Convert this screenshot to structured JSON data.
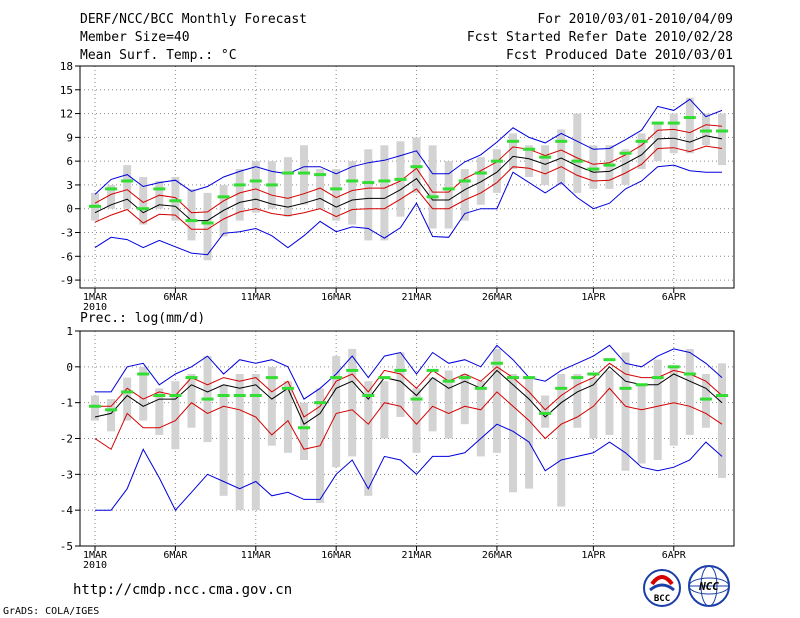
{
  "header": {
    "title": "DERF/NCC/BCC Monthly Forecast",
    "member_size": "Member Size=40",
    "variable": "Mean Surf. Temp.: °C",
    "period": "For 2010/03/01-2010/04/09",
    "start_date": "Fcst Started Refer Date 2010/02/28",
    "produced_date": "Fcst Produced Date 2010/03/01"
  },
  "footer": {
    "url": "http://cmdp.ncc.cma.gov.cn",
    "grads": "GrADS: COLA/IGES",
    "logo_bcc": "BCC",
    "logo_ncc": "NCC"
  },
  "colors": {
    "mean": "#000000",
    "spread": "#d40000",
    "range": "#0000dd",
    "obs": "#33dd33",
    "box": "#d3d3d3",
    "grid": "#888888"
  },
  "chart_data": [
    {
      "type": "line",
      "title": "Mean Surf. Temp.: °C",
      "ylabel": "°C",
      "ylim": [
        -10,
        18
      ],
      "yticks": [
        -9,
        -6,
        -3,
        0,
        3,
        6,
        9,
        12,
        15,
        18
      ],
      "x_tick_labels": [
        "1MAR",
        "6MAR",
        "11MAR",
        "16MAR",
        "21MAR",
        "26MAR",
        "1APR",
        "6APR"
      ],
      "x_tick_days": [
        1,
        6,
        11,
        16,
        21,
        26,
        32,
        37
      ],
      "x_year_label": "2010",
      "days": [
        1,
        2,
        3,
        4,
        5,
        6,
        7,
        8,
        9,
        10,
        11,
        12,
        13,
        14,
        15,
        16,
        17,
        18,
        19,
        20,
        21,
        22,
        23,
        24,
        25,
        26,
        27,
        28,
        29,
        30,
        31,
        32,
        33,
        34,
        35,
        36,
        37,
        38,
        39,
        40
      ],
      "series": [
        {
          "name": "mean",
          "values": [
            -0.5,
            0.5,
            1.2,
            -0.5,
            0.5,
            0.3,
            -1.5,
            -1.5,
            -0.2,
            0.8,
            1.2,
            0.6,
            0.2,
            0.7,
            1.3,
            0.2,
            1.1,
            1.3,
            1.3,
            2.4,
            3.8,
            1.1,
            1.1,
            2.4,
            3.4,
            4.6,
            6.6,
            6.3,
            5.6,
            6.4,
            5.4,
            4.6,
            4.7,
            5.7,
            6.8,
            8.8,
            8.9,
            8.4,
            9.2,
            8.8
          ]
        },
        {
          "name": "spread_upper",
          "values": [
            0.7,
            1.8,
            2.4,
            0.8,
            1.7,
            1.4,
            -0.5,
            -0.4,
            1.0,
            2.0,
            2.5,
            1.7,
            1.3,
            1.9,
            2.6,
            1.4,
            2.3,
            2.6,
            2.6,
            3.5,
            5.1,
            2.1,
            2.1,
            3.8,
            4.8,
            5.9,
            7.8,
            7.5,
            6.7,
            7.4,
            6.4,
            5.6,
            5.8,
            6.8,
            8.0,
            9.9,
            10.0,
            9.6,
            10.6,
            10.4
          ]
        },
        {
          "name": "spread_lower",
          "values": [
            -1.7,
            -0.8,
            -0.1,
            -1.8,
            -0.7,
            -0.8,
            -2.6,
            -2.6,
            -1.3,
            -0.4,
            0.0,
            -0.6,
            -0.9,
            -0.5,
            0.0,
            -1.0,
            -0.1,
            0.0,
            0.0,
            1.2,
            2.5,
            0.0,
            0.0,
            1.1,
            2.0,
            3.3,
            5.3,
            5.1,
            4.4,
            5.3,
            4.2,
            3.5,
            3.6,
            4.5,
            5.6,
            7.6,
            7.7,
            7.2,
            7.9,
            7.6
          ]
        },
        {
          "name": "max",
          "values": [
            1.8,
            3.7,
            4.3,
            2.8,
            3.3,
            3.6,
            2.2,
            2.8,
            4.0,
            4.7,
            5.3,
            4.7,
            4.4,
            5.3,
            5.3,
            4.4,
            5.3,
            5.8,
            6.1,
            6.7,
            7.3,
            4.4,
            4.4,
            5.9,
            6.8,
            8.4,
            10.2,
            9.0,
            8.3,
            9.5,
            8.5,
            7.5,
            7.6,
            8.7,
            9.9,
            12.9,
            12.4,
            13.8,
            11.6,
            12.4
          ]
        },
        {
          "name": "min",
          "values": [
            -4.9,
            -3.6,
            -3.9,
            -4.9,
            -4.0,
            -4.8,
            -5.6,
            -5.8,
            -3.1,
            -2.9,
            -2.5,
            -3.4,
            -4.9,
            -3.4,
            -1.6,
            -2.9,
            -2.3,
            -2.5,
            -3.7,
            -2.4,
            0.7,
            -3.5,
            -3.6,
            -0.6,
            0.0,
            0.0,
            4.6,
            3.3,
            2.0,
            3.3,
            1.4,
            0.0,
            0.7,
            2.5,
            3.5,
            5.3,
            5.5,
            4.8,
            4.6,
            4.6
          ]
        },
        {
          "name": "box_top",
          "values": [
            2.0,
            3.0,
            5.5,
            4.0,
            3.5,
            4.0,
            2.5,
            2.0,
            3.0,
            5.0,
            6.0,
            6.0,
            6.5,
            8.0,
            5.0,
            5.0,
            6.0,
            7.5,
            8.0,
            8.5,
            9.0,
            8.0,
            6.0,
            5.0,
            6.5,
            7.5,
            9.5,
            8.0,
            8.0,
            10.0,
            12.0,
            8.0,
            8.0,
            7.5,
            9.5,
            11.0,
            12.0,
            14.0,
            12.0,
            12.0
          ]
        },
        {
          "name": "box_bottom",
          "values": [
            -1.5,
            0.0,
            0.0,
            -2.0,
            0.0,
            -1.5,
            -4.0,
            -6.5,
            -3.5,
            -1.5,
            -0.5,
            0.0,
            -1.0,
            0.5,
            0.0,
            -1.5,
            -2.0,
            -4.0,
            -4.0,
            -1.0,
            2.0,
            -2.5,
            -2.5,
            -1.5,
            0.5,
            2.0,
            5.0,
            4.0,
            3.0,
            3.0,
            2.0,
            2.5,
            2.5,
            3.0,
            5.0,
            6.0,
            7.0,
            7.0,
            8.0,
            5.5
          ]
        },
        {
          "name": "obs",
          "values": [
            0.3,
            2.5,
            3.5,
            0.0,
            2.5,
            1.0,
            -1.5,
            -1.8,
            1.5,
            3.0,
            3.5,
            3.0,
            4.5,
            4.5,
            4.3,
            2.5,
            3.5,
            3.3,
            3.5,
            3.7,
            5.3,
            1.5,
            2.5,
            3.5,
            4.5,
            6.0,
            8.5,
            7.5,
            6.5,
            8.5,
            6.0,
            5.0,
            5.5,
            7.0,
            8.5,
            10.8,
            10.8,
            11.5,
            9.8,
            9.8
          ]
        }
      ]
    },
    {
      "type": "line",
      "title": "Prec.: log(mm/d)",
      "ylabel": "log(mm/d)",
      "ylim": [
        -5,
        1
      ],
      "yticks": [
        -5,
        -4,
        -3,
        -2,
        -1,
        0,
        1
      ],
      "x_tick_labels": [
        "1MAR",
        "6MAR",
        "11MAR",
        "16MAR",
        "21MAR",
        "26MAR",
        "1APR",
        "6APR"
      ],
      "x_tick_days": [
        1,
        6,
        11,
        16,
        21,
        26,
        32,
        37
      ],
      "x_year_label": "2010",
      "days": [
        1,
        2,
        3,
        4,
        5,
        6,
        7,
        8,
        9,
        10,
        11,
        12,
        13,
        14,
        15,
        16,
        17,
        18,
        19,
        20,
        21,
        22,
        23,
        24,
        25,
        26,
        27,
        28,
        29,
        30,
        31,
        32,
        33,
        34,
        35,
        36,
        37,
        38,
        39,
        40
      ],
      "series": [
        {
          "name": "mean",
          "values": [
            -1.4,
            -1.3,
            -0.8,
            -1.1,
            -0.9,
            -0.9,
            -0.5,
            -0.7,
            -0.5,
            -0.6,
            -0.5,
            -0.9,
            -0.6,
            -1.6,
            -1.3,
            -0.6,
            -0.4,
            -0.9,
            -0.3,
            -0.4,
            -0.8,
            -0.3,
            -0.6,
            -0.4,
            -0.6,
            -0.1,
            -0.5,
            -0.9,
            -1.4,
            -1.0,
            -0.7,
            -0.5,
            0.0,
            -0.4,
            -0.5,
            -0.5,
            -0.2,
            -0.4,
            -0.6,
            -1.0
          ]
        },
        {
          "name": "spread_upper",
          "values": [
            -1.1,
            -1.1,
            -0.6,
            -0.9,
            -0.7,
            -0.8,
            -0.3,
            -0.5,
            -0.3,
            -0.4,
            -0.3,
            -0.7,
            -0.4,
            -1.4,
            -1.1,
            -0.4,
            -0.2,
            -0.7,
            -0.1,
            -0.2,
            -0.6,
            -0.1,
            -0.4,
            -0.2,
            -0.4,
            0.0,
            -0.3,
            -0.7,
            -1.2,
            -0.8,
            -0.5,
            -0.3,
            0.1,
            -0.2,
            -0.3,
            -0.3,
            -0.1,
            -0.2,
            -0.4,
            -0.8
          ]
        },
        {
          "name": "spread_lower",
          "values": [
            -2.0,
            -2.3,
            -1.3,
            -1.7,
            -1.7,
            -1.5,
            -1.0,
            -1.3,
            -1.1,
            -1.2,
            -1.4,
            -1.9,
            -1.5,
            -2.3,
            -2.2,
            -1.3,
            -1.2,
            -1.6,
            -1.0,
            -1.1,
            -1.6,
            -1.1,
            -1.3,
            -1.1,
            -1.2,
            -0.7,
            -1.1,
            -1.5,
            -2.0,
            -1.6,
            -1.4,
            -1.1,
            -0.6,
            -1.1,
            -1.2,
            -1.1,
            -1.0,
            -1.1,
            -1.3,
            -1.6
          ]
        },
        {
          "name": "max",
          "values": [
            -0.7,
            -0.7,
            0.0,
            0.1,
            -0.5,
            -0.2,
            0.0,
            0.3,
            -0.2,
            0.2,
            0.1,
            0.2,
            0.0,
            -0.9,
            -0.6,
            -0.2,
            0.3,
            -0.3,
            0.3,
            0.4,
            -0.2,
            0.4,
            0.1,
            0.2,
            0.0,
            0.6,
            0.2,
            -0.3,
            -0.4,
            -0.1,
            0.1,
            0.3,
            0.6,
            0.1,
            0.0,
            0.3,
            0.5,
            0.4,
            0.1,
            -0.3
          ]
        },
        {
          "name": "min",
          "values": [
            -4.0,
            -4.0,
            -3.4,
            -2.3,
            -3.1,
            -4.0,
            -3.5,
            -3.0,
            -3.2,
            -3.4,
            -3.2,
            -3.6,
            -3.5,
            -3.7,
            -3.7,
            -3.0,
            -2.6,
            -3.4,
            -2.5,
            -2.6,
            -3.0,
            -2.5,
            -2.5,
            -2.4,
            -2.0,
            -1.6,
            -1.8,
            -2.1,
            -2.9,
            -2.6,
            -2.5,
            -2.4,
            -2.1,
            -2.4,
            -2.8,
            -2.9,
            -2.8,
            -2.6,
            -2.1,
            -2.5
          ]
        },
        {
          "name": "box_top",
          "values": [
            -0.8,
            -0.9,
            -0.3,
            0.0,
            -0.6,
            -0.4,
            -0.2,
            0.3,
            -0.5,
            -0.2,
            -0.2,
            0.0,
            -0.4,
            -1.0,
            -0.6,
            0.3,
            0.5,
            -0.4,
            -0.4,
            0.4,
            -0.6,
            -0.3,
            -0.1,
            -0.2,
            -0.4,
            0.5,
            -0.2,
            -0.3,
            -0.8,
            -0.2,
            -0.2,
            -0.3,
            -0.1,
            0.4,
            -0.5,
            0.2,
            0.0,
            0.5,
            -0.2,
            0.1
          ]
        },
        {
          "name": "box_bottom",
          "values": [
            -1.5,
            -1.8,
            -1.5,
            -1.5,
            -1.9,
            -2.3,
            -1.7,
            -2.1,
            -3.6,
            -4.0,
            -4.0,
            -2.2,
            -2.4,
            -2.6,
            -3.8,
            -2.8,
            -2.5,
            -3.6,
            -2.0,
            -1.4,
            -2.4,
            -1.8,
            -2.0,
            -1.6,
            -2.5,
            -2.4,
            -3.5,
            -3.4,
            -1.7,
            -3.9,
            -1.7,
            -2.0,
            -1.9,
            -2.9,
            -2.7,
            -2.6,
            -2.2,
            -1.9,
            -1.7,
            -3.1
          ]
        },
        {
          "name": "obs",
          "values": [
            -1.1,
            -1.2,
            -0.7,
            -0.2,
            -0.8,
            -0.8,
            -0.3,
            -0.9,
            -0.8,
            -0.8,
            -0.8,
            -0.3,
            -0.6,
            -1.7,
            -1.0,
            -0.3,
            -0.1,
            -0.8,
            -0.3,
            -0.1,
            -0.9,
            -0.1,
            -0.4,
            -0.3,
            -0.6,
            0.1,
            -0.3,
            -0.3,
            -1.3,
            -0.6,
            -0.3,
            -0.2,
            0.2,
            -0.6,
            -0.5,
            -0.3,
            0.0,
            -0.2,
            -0.9,
            -0.8
          ]
        }
      ]
    }
  ]
}
